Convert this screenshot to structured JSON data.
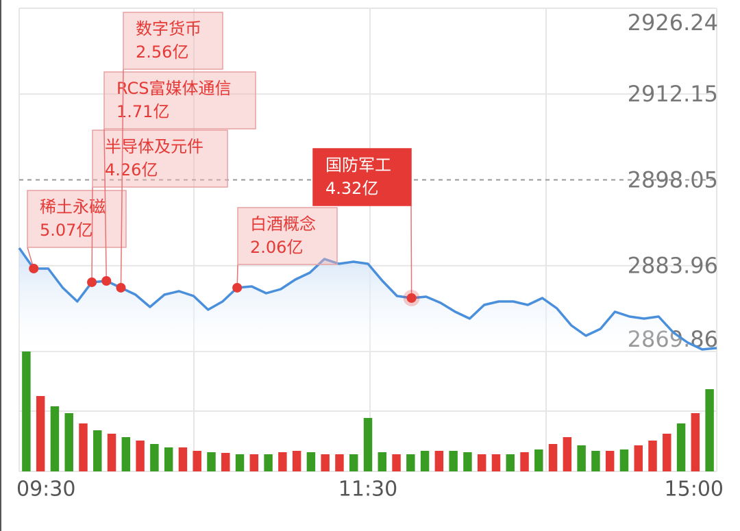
{
  "chart_data": [
    {
      "type": "line",
      "categories": [
        "09:30",
        null,
        null,
        null,
        null,
        null,
        null,
        null,
        null,
        null,
        null,
        null,
        null,
        null,
        null,
        null,
        null,
        null,
        null,
        null,
        null,
        null,
        null,
        null,
        "11:30",
        null,
        null,
        null,
        null,
        null,
        null,
        null,
        null,
        null,
        null,
        null,
        null,
        null,
        null,
        null,
        null,
        null,
        null,
        null,
        null,
        null,
        null,
        null,
        "15:00"
      ],
      "values": [
        2886.85,
        2883.48,
        2883.48,
        2880.33,
        2878.07,
        2881.23,
        2881.45,
        2880.33,
        2879.2,
        2877.17,
        2879.2,
        2879.76,
        2878.97,
        2876.72,
        2878.07,
        2880.33,
        2880.55,
        2879.43,
        2880.1,
        2881.68,
        2882.8,
        2885.05,
        2884.26,
        2884.6,
        2884.26,
        2881.45,
        2878.97,
        2878.64,
        2878.86,
        2877.85,
        2876.39,
        2875.26,
        2877.51,
        2878.07,
        2878.07,
        2877.51,
        2878.64,
        2876.95,
        2874.14,
        2872.45,
        2873.57,
        2876.39,
        2875.6,
        2875.26,
        2875.6,
        2873.01,
        2871.32,
        2870.2,
        2870.42
      ],
      "color": "#4a8fdc",
      "ylim": [
        2869.86,
        2926.24
      ],
      "yticks": [
        2926.24,
        2912.15,
        2898.05,
        2883.96,
        2869.86
      ],
      "grid": true,
      "annotations": [
        {
          "label": "稀土永磁",
          "amount": "5.07亿",
          "at": 1,
          "highlight": false
        },
        {
          "label": "半导体及元件",
          "amount": "4.26亿",
          "at": 5,
          "highlight": false
        },
        {
          "label": "RCS富媒体通信",
          "amount": "1.71亿",
          "at": 6,
          "highlight": false
        },
        {
          "label": "数字货币",
          "amount": "2.56亿",
          "at": 7,
          "highlight": false
        },
        {
          "label": "白酒概念",
          "amount": "2.06亿",
          "at": 15,
          "highlight": false
        },
        {
          "label": "国防军工",
          "amount": "4.32亿",
          "at": 27,
          "highlight": true
        }
      ]
    },
    {
      "type": "bar",
      "values": [
        175,
        110,
        95,
        85,
        70,
        60,
        55,
        50,
        45,
        40,
        35,
        35,
        30,
        28,
        27,
        25,
        25,
        25,
        28,
        30,
        28,
        25,
        25,
        25,
        78,
        28,
        25,
        25,
        30,
        30,
        30,
        28,
        25,
        25,
        25,
        28,
        32,
        40,
        50,
        38,
        30,
        30,
        32,
        38,
        45,
        55,
        70,
        85,
        120
      ],
      "colors": [
        "#3a9d23",
        "#e53935",
        "#3a9d23",
        "#3a9d23",
        "#e53935",
        "#3a9d23",
        "#e53935",
        "#3a9d23",
        "#e53935",
        "#3a9d23",
        "#3a9d23",
        "#e53935",
        "#e53935",
        "#3a9d23",
        "#e53935",
        "#3a9d23",
        "#e53935",
        "#3a9d23",
        "#e53935",
        "#e53935",
        "#3a9d23",
        "#e53935",
        "#e53935",
        "#3a9d23",
        "#3a9d23",
        "#3a9d23",
        "#e53935",
        "#3a9d23",
        "#3a9d23",
        "#e53935",
        "#3a9d23",
        "#3a9d23",
        "#e53935",
        "#e53935",
        "#3a9d23",
        "#e53935",
        "#3a9d23",
        "#e53935",
        "#e53935",
        "#3a9d23",
        "#3a9d23",
        "#e53935",
        "#3a9d23",
        "#e53935",
        "#e53935",
        "#e53935",
        "#3a9d23",
        "#e53935",
        "#3a9d23"
      ],
      "ylim": [
        0,
        175
      ]
    }
  ]
}
